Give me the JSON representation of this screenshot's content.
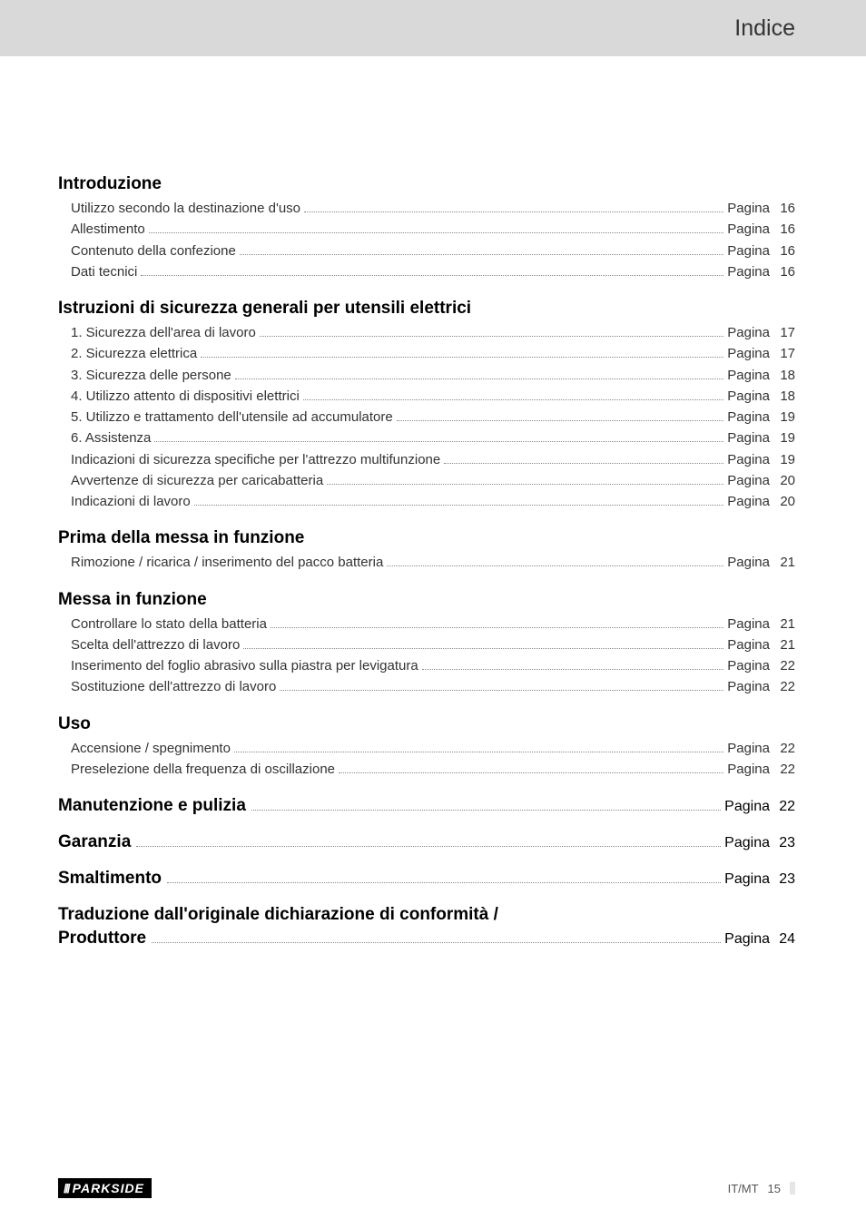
{
  "header_title": "Indice",
  "page_word": "Pagina",
  "sections": [
    {
      "title": "Introduzione",
      "entries": [
        {
          "label": "Utilizzo secondo la destinazione d'uso",
          "page": "16"
        },
        {
          "label": "Allestimento",
          "page": "16"
        },
        {
          "label": "Contenuto della confezione",
          "page": "16"
        },
        {
          "label": "Dati tecnici",
          "page": "16"
        }
      ]
    },
    {
      "title": "Istruzioni di sicurezza generali per utensili elettrici",
      "entries": [
        {
          "label": "1. Sicurezza dell'area di lavoro",
          "page": "17"
        },
        {
          "label": "2. Sicurezza elettrica",
          "page": "17"
        },
        {
          "label": "3. Sicurezza delle persone",
          "page": "18"
        },
        {
          "label": "4. Utilizzo attento di dispositivi elettrici",
          "page": "18"
        },
        {
          "label": "5. Utilizzo e trattamento dell'utensile ad accumulatore",
          "page": "19"
        },
        {
          "label": "6. Assistenza",
          "page": "19"
        },
        {
          "label": "Indicazioni di sicurezza specifiche per l'attrezzo multifunzione",
          "page": "19"
        },
        {
          "label": "Avvertenze di sicurezza per caricabatteria",
          "page": "20"
        },
        {
          "label": "Indicazioni di lavoro",
          "page": "20"
        }
      ]
    },
    {
      "title": "Prima della messa in funzione",
      "entries": [
        {
          "label": "Rimozione / ricarica / inserimento del pacco batteria",
          "page": "21"
        }
      ]
    },
    {
      "title": "Messa in funzione",
      "entries": [
        {
          "label": "Controllare lo stato della batteria",
          "page": "21"
        },
        {
          "label": "Scelta dell'attrezzo di lavoro",
          "page": "21"
        },
        {
          "label": "Inserimento del foglio abrasivo sulla piastra per levigatura",
          "page": "22"
        },
        {
          "label": "Sostituzione dell'attrezzo di lavoro",
          "page": "22"
        }
      ]
    },
    {
      "title": "Uso",
      "entries": [
        {
          "label": "Accensione / spegnimento",
          "page": "22"
        },
        {
          "label": "Preselezione della frequenza di oscillazione",
          "page": "22"
        }
      ]
    }
  ],
  "inline_sections": [
    {
      "title": "Manutenzione e pulizia",
      "page": "22"
    },
    {
      "title": "Garanzia",
      "page": "23"
    },
    {
      "title": "Smaltimento",
      "page": "23"
    }
  ],
  "final_section": {
    "title_line1": "Traduzione dall'originale dichiarazione di conformità /",
    "title_line2": "Produttore",
    "page": "24"
  },
  "footer": {
    "logo_text": "PARKSIDE",
    "lang": "IT/MT",
    "page_num": "15"
  },
  "colors": {
    "header_bg": "#d9d9d9",
    "text": "#333333",
    "dots": "#888888",
    "logo_bg": "#000000",
    "logo_fg": "#ffffff",
    "marker": "#e6e6e6"
  }
}
